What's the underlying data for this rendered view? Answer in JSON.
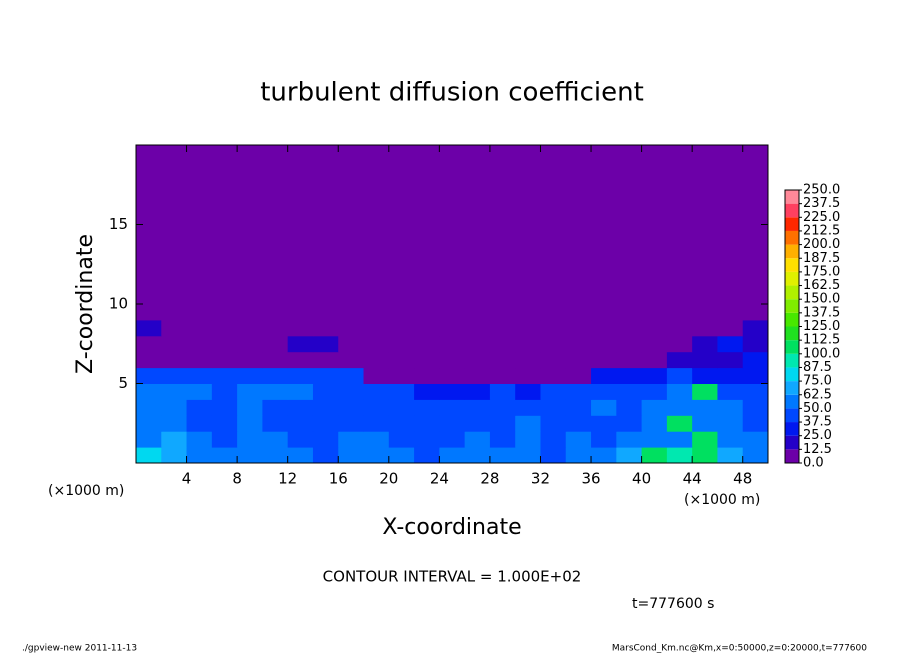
{
  "chart_data": {
    "type": "heatmap",
    "title": "turbulent diffusion coefficient",
    "x_label": "X-coordinate",
    "y_label": "Z-coordinate",
    "x_unit": "(×1000 m)",
    "y_unit": "(×1000 m)",
    "annotation": "CONTOUR INTERVAL = 1.000E+02",
    "time_label": "t=777600 s",
    "footer_left": "./gpview-new   2011-11-13",
    "footer_right": "MarsCond_Km.nc@Km,x=0:50000,z=0:20000,t=777600",
    "xlim": [
      0,
      50
    ],
    "ylim": [
      0,
      20
    ],
    "xticks": [
      4,
      8,
      12,
      16,
      20,
      24,
      28,
      32,
      36,
      40,
      44,
      48
    ],
    "yticks": [
      5,
      10,
      15
    ],
    "x_bins": [
      0,
      2,
      4,
      6,
      8,
      10,
      12,
      14,
      16,
      18,
      20,
      22,
      24,
      26,
      28,
      30,
      32,
      34,
      36,
      38,
      40,
      42,
      44,
      46,
      48,
      50
    ],
    "z_bins": [
      0,
      1,
      2,
      3,
      4,
      5,
      6,
      7,
      8,
      9,
      10,
      20
    ],
    "values": [
      [
        75,
        70,
        55,
        50,
        60,
        55,
        50,
        45,
        50,
        55,
        60,
        45,
        50,
        55,
        50,
        55,
        45,
        50,
        50,
        70,
        100,
        90,
        105,
        65,
        60
      ],
      [
        60,
        65,
        50,
        45,
        55,
        50,
        45,
        45,
        50,
        50,
        45,
        40,
        45,
        50,
        45,
        55,
        45,
        50,
        45,
        50,
        55,
        60,
        100,
        55,
        50
      ],
      [
        55,
        60,
        45,
        40,
        50,
        45,
        40,
        40,
        45,
        45,
        40,
        40,
        45,
        45,
        40,
        50,
        40,
        45,
        45,
        45,
        50,
        100,
        60,
        50,
        45
      ],
      [
        50,
        55,
        45,
        40,
        50,
        45,
        45,
        40,
        40,
        45,
        40,
        45,
        40,
        40,
        45,
        45,
        40,
        45,
        50,
        45,
        50,
        55,
        60,
        55,
        45
      ],
      [
        50,
        55,
        50,
        45,
        50,
        50,
        50,
        45,
        45,
        45,
        40,
        35,
        35,
        30,
        40,
        35,
        40,
        45,
        45,
        40,
        45,
        55,
        100,
        45,
        40
      ],
      [
        45,
        45,
        45,
        40,
        40,
        40,
        45,
        45,
        40,
        10,
        5,
        5,
        5,
        5,
        5,
        5,
        5,
        5,
        25,
        30,
        35,
        40,
        35,
        30,
        30
      ],
      [
        0,
        0,
        5,
        0,
        0,
        0,
        10,
        10,
        5,
        0,
        0,
        0,
        0,
        0,
        0,
        0,
        0,
        0,
        0,
        0,
        0,
        15,
        20,
        20,
        25
      ],
      [
        5,
        0,
        10,
        0,
        0,
        10,
        15,
        15,
        10,
        0,
        0,
        0,
        0,
        0,
        0,
        0,
        0,
        0,
        0,
        0,
        0,
        0,
        15,
        25,
        20
      ],
      [
        20,
        0,
        0,
        0,
        0,
        0,
        0,
        0,
        0,
        0,
        0,
        0,
        0,
        0,
        0,
        0,
        0,
        0,
        0,
        0,
        0,
        0,
        0,
        0,
        15
      ],
      [
        0,
        0,
        0,
        0,
        0,
        0,
        0,
        0,
        0,
        0,
        0,
        0,
        0,
        0,
        0,
        0,
        0,
        0,
        0,
        0,
        0,
        0,
        0,
        0,
        0
      ],
      [
        0,
        0,
        0,
        0,
        0,
        0,
        0,
        0,
        0,
        0,
        0,
        0,
        0,
        0,
        0,
        0,
        0,
        0,
        0,
        0,
        0,
        0,
        0,
        0,
        0
      ]
    ],
    "levels": [
      {
        "value": 0,
        "label": "0.0"
      },
      {
        "value": 12.5,
        "label": "12.5"
      },
      {
        "value": 25,
        "label": "25.0"
      },
      {
        "value": 37.5,
        "label": "37.5"
      },
      {
        "value": 50,
        "label": "50.0"
      },
      {
        "value": 62.5,
        "label": "62.5"
      },
      {
        "value": 75,
        "label": "75.0"
      },
      {
        "value": 87.5,
        "label": "87.5"
      },
      {
        "value": 100,
        "label": "100.0"
      },
      {
        "value": 112.5,
        "label": "112.5"
      },
      {
        "value": 125,
        "label": "125.0"
      },
      {
        "value": 137.5,
        "label": "137.5"
      },
      {
        "value": 150,
        "label": "150.0"
      },
      {
        "value": 162.5,
        "label": "162.5"
      },
      {
        "value": 175,
        "label": "175.0"
      },
      {
        "value": 187.5,
        "label": "187.5"
      },
      {
        "value": 200,
        "label": "200.0"
      },
      {
        "value": 212.5,
        "label": "212.5"
      },
      {
        "value": 225,
        "label": "225.0"
      },
      {
        "value": 237.5,
        "label": "237.5"
      },
      {
        "value": 250,
        "label": "250.0"
      }
    ],
    "colors": [
      "#6c00a8",
      "#2400c8",
      "#0018f0",
      "#0048ff",
      "#0078ff",
      "#10a8ff",
      "#00d8f0",
      "#00e8b0",
      "#00e060",
      "#20e020",
      "#48e800",
      "#80ec00",
      "#b0f000",
      "#e0f000",
      "#ffe000",
      "#ffb000",
      "#ff7000",
      "#ff2800",
      "#ff4060",
      "#ff8898"
    ]
  }
}
